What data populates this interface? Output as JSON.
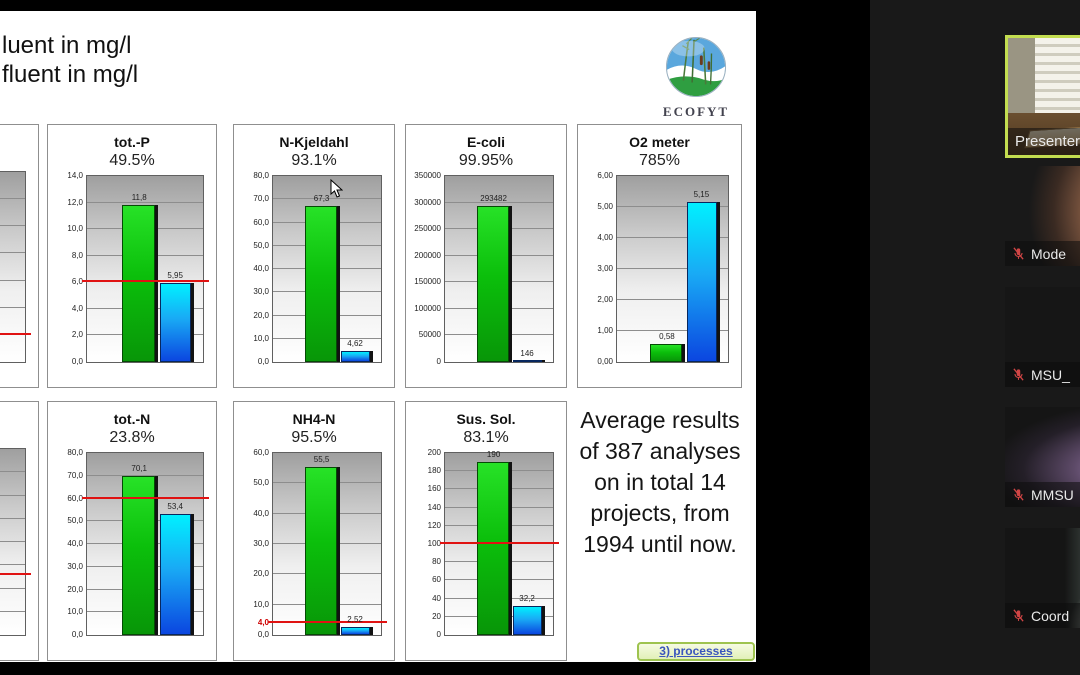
{
  "slide": {
    "legend_lines": [
      "luent in mg/l",
      "fluent in mg/l"
    ],
    "logo_text": "ECOFYT",
    "summary": "Average results of 387 analyses on in total 14 projects, from 1994 until now.",
    "button_label": "3) processes"
  },
  "colors": {
    "influent_bar": "#0bbf0b",
    "effluent_bar": "#0b46e0",
    "limit_line": "#e01212",
    "active_speaker_border": "#c3dd50",
    "muted_mic": "#d04545"
  },
  "chart_data": [
    {
      "type": "bar",
      "partial": true,
      "gridlines": 7,
      "red_line_frac": 0.14
    },
    {
      "type": "bar",
      "title": "tot.-P",
      "reduction": "49.5%",
      "ylim": [
        0,
        14
      ],
      "ystep": 2,
      "tick_labels": [
        "0,0",
        "2,0",
        "4,0",
        "6,0",
        "8,0",
        "10,0",
        "12,0",
        "14,0"
      ],
      "series": [
        {
          "name": "influent",
          "value": 11.8,
          "label": "11,8"
        },
        {
          "name": "effluent",
          "value": 5.95,
          "label": "5,95"
        }
      ],
      "red_line": 6
    },
    {
      "type": "bar",
      "title": "N-Kjeldahl",
      "reduction": "93.1%",
      "ylim": [
        0,
        80
      ],
      "ystep": 10,
      "tick_labels": [
        "0,0",
        "10,0",
        "20,0",
        "30,0",
        "40,0",
        "50,0",
        "60,0",
        "70,0",
        "80,0"
      ],
      "series": [
        {
          "name": "influent",
          "value": 67.3,
          "label": "67,3"
        },
        {
          "name": "effluent",
          "value": 4.62,
          "label": "4,62"
        }
      ]
    },
    {
      "type": "bar",
      "title": "E-coli",
      "reduction": "99.95%",
      "ylim": [
        0,
        350000
      ],
      "ystep": 50000,
      "tick_labels": [
        "0",
        "50000",
        "100000",
        "150000",
        "200000",
        "250000",
        "300000",
        "350000"
      ],
      "series": [
        {
          "name": "influent",
          "value": 293482,
          "label": "293482"
        },
        {
          "name": "effluent",
          "value": 146,
          "label": "146"
        }
      ]
    },
    {
      "type": "bar",
      "title": "O2 meter",
      "reduction": "785%",
      "ylim": [
        0,
        6
      ],
      "ystep": 1,
      "tick_labels": [
        "0,00",
        "1,00",
        "2,00",
        "3,00",
        "4,00",
        "5,00",
        "6,00"
      ],
      "series": [
        {
          "name": "influent",
          "value": 0.58,
          "label": "0,58"
        },
        {
          "name": "effluent",
          "value": 5.15,
          "label": "5,15"
        }
      ]
    },
    {
      "type": "bar",
      "partial": true,
      "gridlines": 8,
      "red_line_frac": 0.32
    },
    {
      "type": "bar",
      "title": "tot.-N",
      "reduction": "23.8%",
      "ylim": [
        0,
        80
      ],
      "ystep": 10,
      "tick_labels": [
        "0,0",
        "10,0",
        "20,0",
        "30,0",
        "40,0",
        "50,0",
        "60,0",
        "70,0",
        "80,0"
      ],
      "series": [
        {
          "name": "influent",
          "value": 70.1,
          "label": "70,1"
        },
        {
          "name": "effluent",
          "value": 53.4,
          "label": "53,4"
        }
      ],
      "red_line": 60
    },
    {
      "type": "bar",
      "title": "NH4-N",
      "reduction": "95.5%",
      "ylim": [
        0,
        60
      ],
      "ystep": 10,
      "tick_labels": [
        "0,0",
        "10,0",
        "20,0",
        "30,0",
        "40,0",
        "50,0",
        "60,0"
      ],
      "series": [
        {
          "name": "influent",
          "value": 55.5,
          "label": "55,5"
        },
        {
          "name": "effluent",
          "value": 2.52,
          "label": "2,52"
        }
      ],
      "red_line": 4,
      "red_tick": {
        "value": 4,
        "label": "4,0"
      }
    },
    {
      "type": "bar",
      "title": "Sus. Sol.",
      "reduction": "83.1%",
      "ylim": [
        0,
        200
      ],
      "ystep": 20,
      "tick_labels": [
        "0",
        "20",
        "40",
        "60",
        "80",
        "100",
        "120",
        "140",
        "160",
        "180",
        "200"
      ],
      "series": [
        {
          "name": "influent",
          "value": 190,
          "label": "190"
        },
        {
          "name": "effluent",
          "value": 32.2,
          "label": "32,2"
        }
      ],
      "red_line": 100
    }
  ],
  "meeting": {
    "participants": [
      {
        "name": "Presenter",
        "muted": false,
        "active_speaker": true
      },
      {
        "name": "Mode",
        "muted": true
      },
      {
        "name": "MSU_",
        "muted": true
      },
      {
        "name": "MMSU",
        "muted": true
      },
      {
        "name": "Coord",
        "muted": true
      }
    ]
  }
}
